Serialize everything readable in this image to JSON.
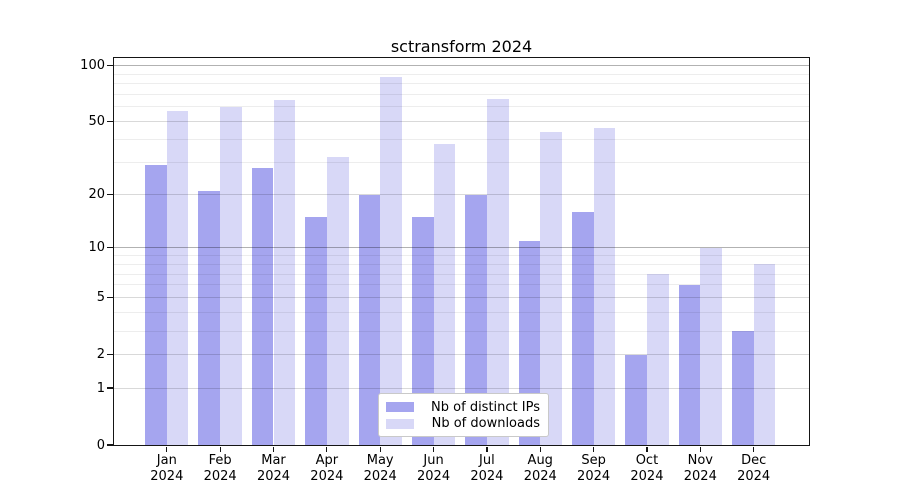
{
  "chart_data": {
    "type": "bar",
    "title": "sctransform 2024",
    "categories": [
      "Jan",
      "Feb",
      "Mar",
      "Apr",
      "May",
      "Jun",
      "Jul",
      "Aug",
      "Sep",
      "Oct",
      "Nov",
      "Dec"
    ],
    "year_label": "2024",
    "series": [
      {
        "name": "Nb of distinct IPs",
        "color": "#a5a5ef",
        "values": [
          29,
          21,
          28,
          15,
          20,
          15,
          20,
          11,
          16,
          2,
          6,
          3
        ]
      },
      {
        "name": "Nb of downloads",
        "color": "#d8d8f7",
        "values": [
          57,
          60,
          65,
          32,
          87,
          38,
          66,
          44,
          46,
          7,
          10,
          8
        ]
      }
    ],
    "yscale": "log1p",
    "ylim": [
      0,
      110
    ],
    "yticks": [
      0,
      1,
      2,
      5,
      10,
      20,
      50,
      100
    ],
    "yticks_minor": [
      3,
      4,
      6,
      7,
      8,
      9,
      30,
      40,
      60,
      70,
      80,
      90
    ],
    "grid": true,
    "legend_position": "lower center",
    "colors": {
      "spine": "#151515",
      "grid_decade": "rgba(0,0,0,0.30)",
      "grid_major": "rgba(0,0,0,0.15)",
      "grid_minor": "rgba(0,0,0,0.07)"
    }
  }
}
